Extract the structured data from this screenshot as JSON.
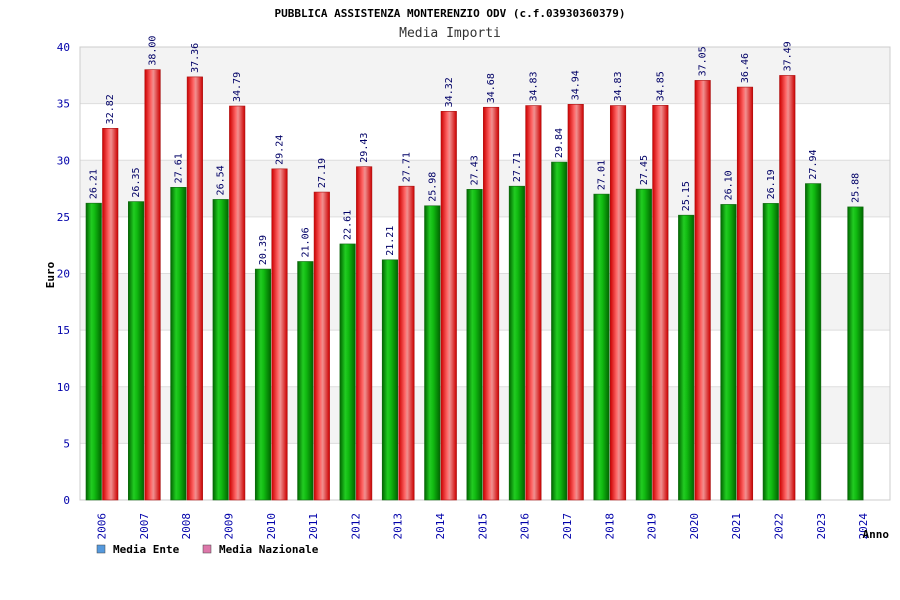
{
  "chart_data": {
    "type": "bar",
    "title": "PUBBLICA ASSISTENZA MONTERENZIO ODV (c.f.03930360379)",
    "subtitle": "Media Importi",
    "xlabel": "Anno",
    "ylabel": "Euro",
    "ylim": [
      0,
      40
    ],
    "yticks": [
      0,
      5,
      10,
      15,
      20,
      25,
      30,
      35,
      40
    ],
    "categories": [
      "2006",
      "2007",
      "2008",
      "2009",
      "2010",
      "2011",
      "2012",
      "2013",
      "2014",
      "2015",
      "2016",
      "2017",
      "2018",
      "2019",
      "2020",
      "2021",
      "2022",
      "2023",
      "2024"
    ],
    "series": [
      {
        "name": "Media Ente",
        "color": "#22aa22",
        "values": [
          26.21,
          26.35,
          27.61,
          26.54,
          20.39,
          21.06,
          22.61,
          21.21,
          25.98,
          27.43,
          27.71,
          29.84,
          27.01,
          27.45,
          25.15,
          26.1,
          26.19,
          27.94,
          25.88
        ],
        "labels": [
          "26.21",
          "26.35",
          "27.61",
          "26.54",
          "20.39",
          "21.06",
          "22.61",
          "21.21",
          "25.98",
          "27.43",
          "27.71",
          "29.84",
          "27.01",
          "27.45",
          "25.15",
          "26.10",
          "26.19",
          "27.94",
          "25.88"
        ]
      },
      {
        "name": "Media Nazionale",
        "color": "#ee3333",
        "values": [
          32.82,
          38.0,
          37.36,
          34.79,
          29.24,
          27.19,
          29.43,
          27.71,
          34.32,
          34.68,
          34.83,
          34.94,
          34.83,
          34.85,
          37.05,
          36.46,
          37.49,
          null,
          null
        ],
        "labels": [
          "32.82",
          "38.00",
          "37.36",
          "34.79",
          "29.24",
          "27.19",
          "29.43",
          "27.71",
          "34.32",
          "34.68",
          "34.83",
          "34.94",
          "34.83",
          "34.85",
          "37.05",
          "36.46",
          "37.49",
          null,
          null
        ]
      }
    ],
    "legend": [
      {
        "label": "Media Ente",
        "swatch": "#5599dd"
      },
      {
        "label": "Media Nazionale",
        "swatch": "#dd77aa"
      }
    ],
    "grid": true,
    "legend_position": "bottom-left"
  }
}
